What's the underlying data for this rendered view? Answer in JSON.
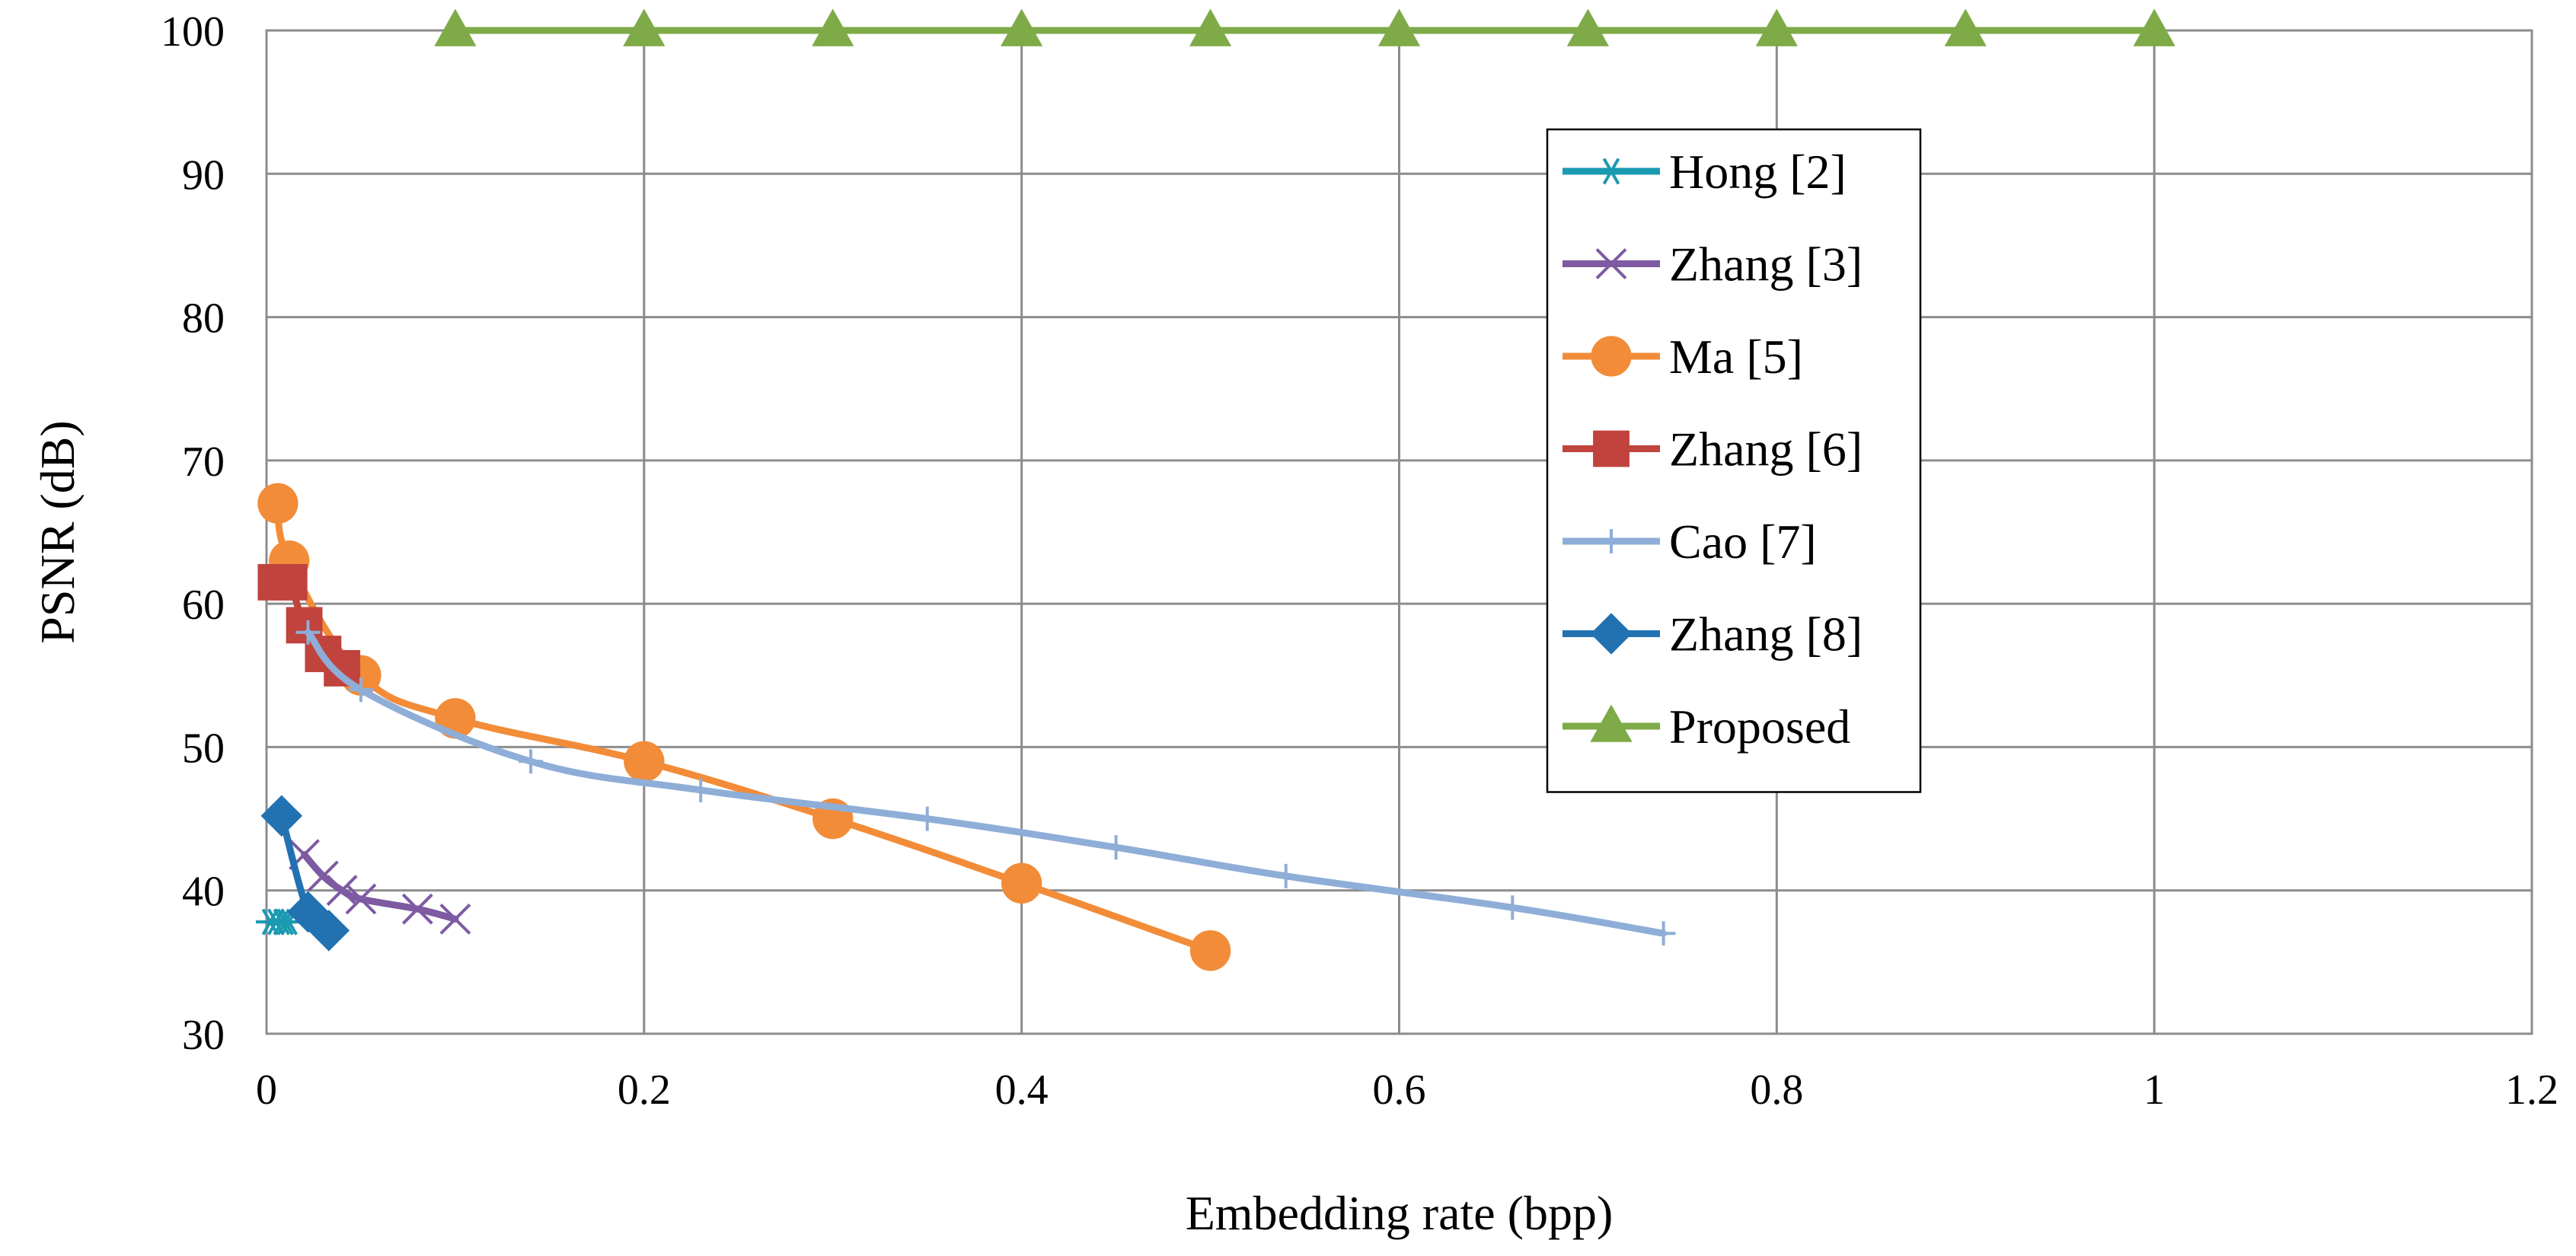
{
  "chart_data": {
    "type": "line",
    "xlabel": "Embedding rate (bpp)",
    "ylabel": "PSNR (dB)",
    "xlim": [
      0,
      1.2
    ],
    "ylim": [
      30,
      100
    ],
    "xticks": [
      "0",
      "0.2",
      "0.4",
      "0.6",
      "0.8",
      "1",
      "1.2"
    ],
    "yticks": [
      "30",
      "40",
      "50",
      "60",
      "70",
      "80",
      "90",
      "100"
    ],
    "grid": true,
    "legend_position": "upper-right inside plot",
    "series": [
      {
        "name": "Hong [2]",
        "color": "#1A9AB0",
        "marker": "asterisk",
        "x": [
          0.002,
          0.005,
          0.008,
          0.01,
          0.012
        ],
        "y": [
          37.8,
          37.8,
          37.8,
          37.8,
          37.8
        ]
      },
      {
        "name": "Zhang [3]",
        "color": "#7E5AA2",
        "marker": "x",
        "x": [
          0.02,
          0.03,
          0.04,
          0.05,
          0.08,
          0.1
        ],
        "y": [
          42.5,
          41.0,
          40.0,
          39.4,
          38.7,
          38.0
        ]
      },
      {
        "name": "Ma [5]",
        "color": "#F28C38",
        "marker": "circle",
        "x": [
          0.006,
          0.012,
          0.05,
          0.1,
          0.2,
          0.3,
          0.4,
          0.5
        ],
        "y": [
          67.0,
          63.0,
          55.0,
          52.0,
          49.0,
          45.0,
          40.5,
          35.8
        ]
      },
      {
        "name": "Zhang [6]",
        "color": "#C0433E",
        "marker": "square",
        "x": [
          0.005,
          0.012,
          0.02,
          0.03,
          0.04
        ],
        "y": [
          61.5,
          61.5,
          58.5,
          56.5,
          55.5
        ]
      },
      {
        "name": "Cao [7]",
        "color": "#8EAED8",
        "marker": "plus",
        "x": [
          0.022,
          0.05,
          0.14,
          0.23,
          0.35,
          0.45,
          0.54,
          0.66,
          0.74
        ],
        "y": [
          58.0,
          54.0,
          49.0,
          47.0,
          45.0,
          43.0,
          41.0,
          38.8,
          37.0
        ]
      },
      {
        "name": "Zhang [8]",
        "color": "#2272B2",
        "marker": "diamond",
        "x": [
          0.008,
          0.022,
          0.033
        ],
        "y": [
          45.2,
          38.5,
          37.2
        ]
      },
      {
        "name": "Proposed",
        "color": "#7EAA47",
        "marker": "triangle",
        "x": [
          0.1,
          0.2,
          0.3,
          0.4,
          0.5,
          0.6,
          0.7,
          0.8,
          0.9,
          1.0
        ],
        "y": [
          100,
          100,
          100,
          100,
          100,
          100,
          100,
          100,
          100,
          100
        ]
      }
    ]
  }
}
